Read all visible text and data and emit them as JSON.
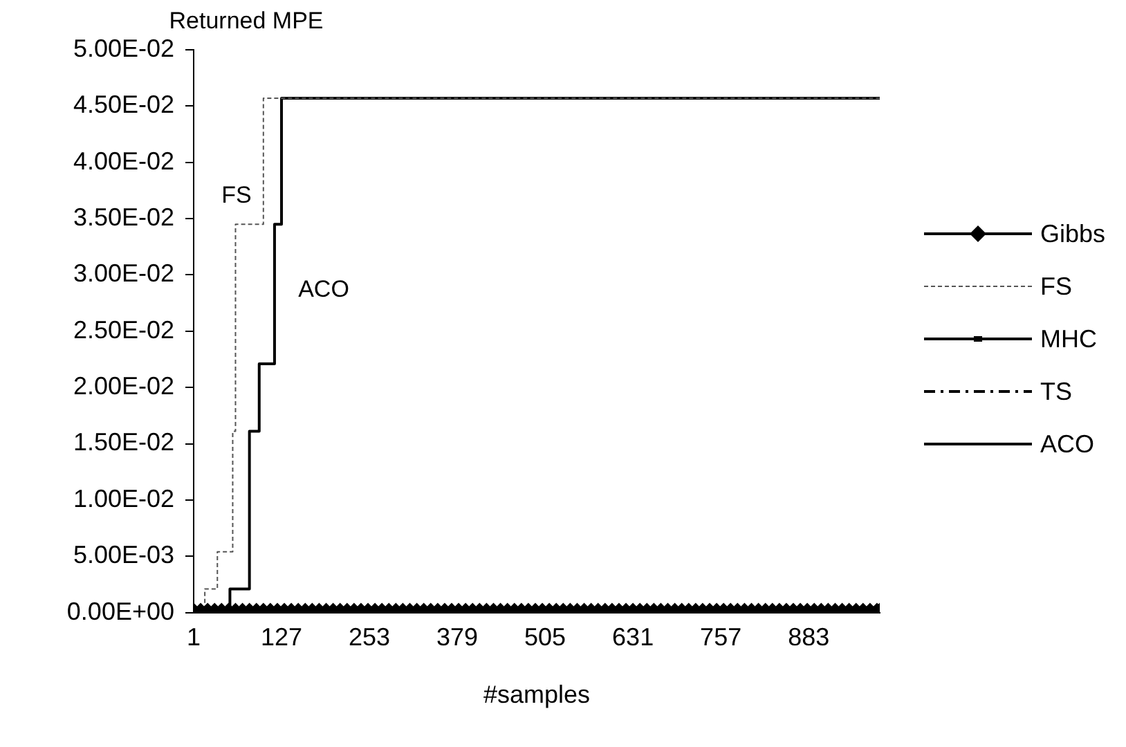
{
  "chart_data": {
    "type": "step",
    "ylabel": "Returned MPE",
    "xlabel": "#samples",
    "xlim": [
      1,
      985
    ],
    "xticks": [
      1,
      127,
      253,
      379,
      505,
      631,
      757,
      883
    ],
    "ylim": [
      0,
      0.05
    ],
    "yticks": [
      {
        "value": 0,
        "label": "0.00E+00"
      },
      {
        "value": 0.005,
        "label": "5.00E-03"
      },
      {
        "value": 0.01,
        "label": "1.00E-02"
      },
      {
        "value": 0.015,
        "label": "1.50E-02"
      },
      {
        "value": 0.02,
        "label": "2.00E-02"
      },
      {
        "value": 0.025,
        "label": "2.50E-02"
      },
      {
        "value": 0.03,
        "label": "3.00E-02"
      },
      {
        "value": 0.035,
        "label": "3.50E-02"
      },
      {
        "value": 0.04,
        "label": "4.00E-02"
      },
      {
        "value": 0.045,
        "label": "4.50E-02"
      },
      {
        "value": 0.05,
        "label": "5.00E-02"
      }
    ],
    "grid": false,
    "legend": "right",
    "series": [
      {
        "name": "Gibbs",
        "color": "#000000",
        "marker": "diamond",
        "line_style": "solid",
        "x": [
          1,
          11,
          21,
          31,
          41,
          51,
          61,
          71,
          81,
          91,
          101,
          111,
          121,
          131,
          141,
          151,
          161,
          171,
          181,
          191,
          201,
          211,
          221,
          231,
          241,
          251,
          261,
          271,
          281,
          291,
          301,
          311,
          321,
          331,
          341,
          351,
          361,
          371,
          381,
          391,
          401,
          411,
          421,
          431,
          441,
          451,
          461,
          471,
          481,
          491,
          501,
          511,
          521,
          531,
          541,
          551,
          561,
          571,
          581,
          591,
          601,
          611,
          621,
          631,
          641,
          651,
          661,
          671,
          681,
          691,
          701,
          711,
          721,
          731,
          741,
          751,
          761,
          771,
          781,
          791,
          801,
          811,
          821,
          831,
          841,
          851,
          861,
          871,
          881,
          891,
          901,
          911,
          921,
          931,
          941,
          951,
          961,
          971,
          981,
          985
        ],
        "values": [
          0,
          0,
          0,
          0,
          0,
          0,
          0,
          0,
          0,
          0,
          0,
          0,
          0,
          0,
          0,
          0,
          0,
          0,
          0,
          0,
          0,
          0,
          0,
          0,
          0,
          0,
          0,
          0,
          0,
          0,
          0,
          0,
          0,
          0,
          0,
          0,
          0,
          0,
          0,
          0,
          0,
          0,
          0,
          0,
          0,
          0,
          0,
          0,
          0,
          0,
          0,
          0,
          0,
          0,
          0,
          0,
          0,
          0,
          0,
          0,
          0,
          0,
          0,
          0,
          0,
          0,
          0,
          0,
          0,
          0,
          0,
          0,
          0,
          0,
          0,
          0,
          0,
          0,
          0,
          0,
          0,
          0,
          0,
          0,
          0,
          0,
          0,
          0,
          0,
          0,
          0,
          0,
          0,
          0,
          0,
          0,
          0,
          0,
          0,
          0
        ]
      },
      {
        "name": "FS",
        "color": "#555555",
        "marker": "none",
        "line_style": "dotted",
        "x": [
          1,
          17,
          35,
          57,
          61,
          101,
          985
        ],
        "values": [
          0,
          0.0021,
          0.0054,
          0.0161,
          0.0345,
          0.0457,
          0.0457
        ]
      },
      {
        "name": "MHC",
        "color": "#000000",
        "marker": "square",
        "line_style": "solid",
        "x": [
          1,
          985
        ],
        "values": [
          0,
          0
        ]
      },
      {
        "name": "TS",
        "color": "#000000",
        "marker": "none",
        "line_style": "dashed",
        "values": [
          null
        ]
      },
      {
        "name": "ACO",
        "color": "#000000",
        "marker": "none",
        "line_style": "solid",
        "x": [
          1,
          53,
          81,
          95,
          117,
          127,
          985
        ],
        "values": [
          0,
          0.0021,
          0.0161,
          0.0221,
          0.0345,
          0.0457,
          0.0457
        ]
      }
    ],
    "annotations": [
      "FS",
      "ACO"
    ]
  }
}
